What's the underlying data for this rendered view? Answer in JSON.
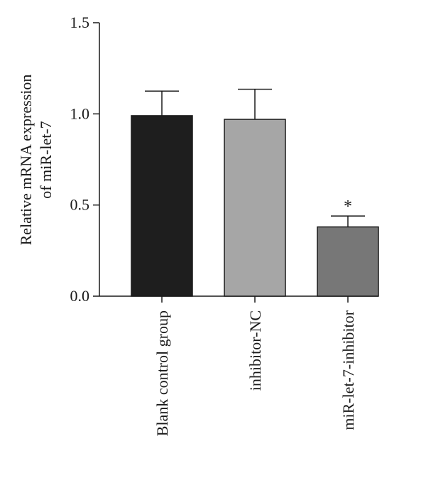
{
  "chart_data": {
    "type": "bar",
    "categories": [
      "Blank control group",
      "inhibitor-NC",
      "miR-let-7-inhibitor"
    ],
    "values": [
      0.99,
      0.97,
      0.38
    ],
    "errors": [
      0.135,
      0.165,
      0.06
    ],
    "colors": [
      "#1e1e1e",
      "#a6a6a6",
      "#777777"
    ],
    "significance": [
      "",
      "",
      "*"
    ],
    "ylabel_lines": [
      "Relative mRNA expression",
      "of miR-let-7"
    ],
    "ylim": [
      0,
      1.5
    ],
    "yticks": [
      0.0,
      0.5,
      1.0,
      1.5
    ],
    "ytick_labels": [
      "0.0",
      "0.5",
      "1.0",
      "1.5"
    ],
    "grid": false,
    "legend": "none"
  }
}
